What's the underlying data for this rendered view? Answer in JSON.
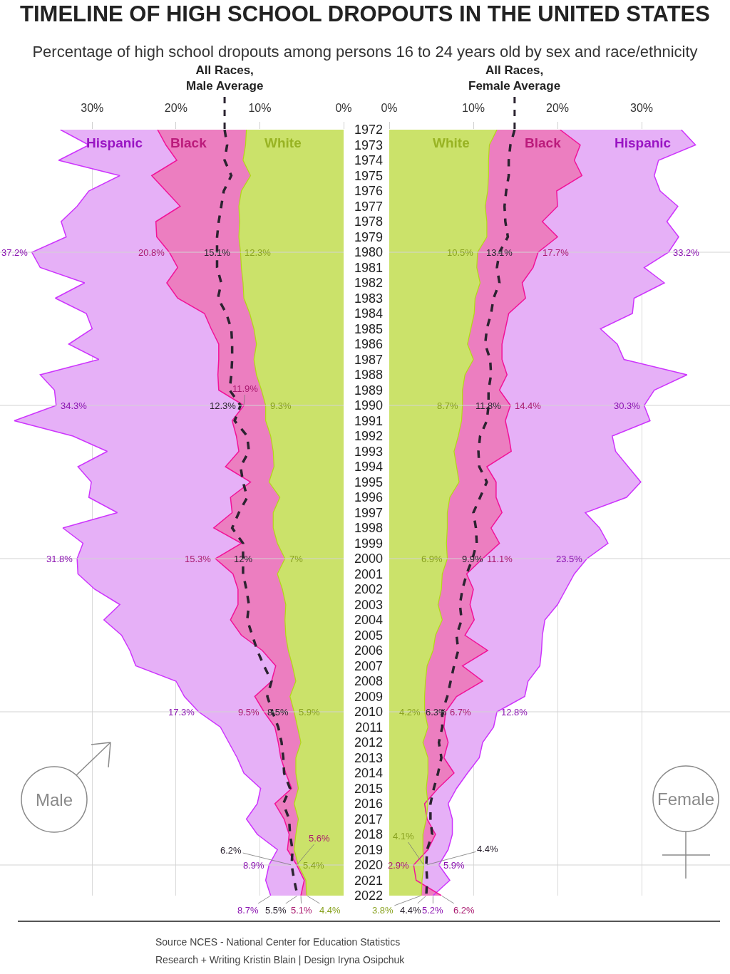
{
  "chart_data": [
    {
      "type": "area",
      "orientation": "horizontal",
      "title": "TIMELINE OF HIGH SCHOOL DROPOUTS IN THE UNITED STATES",
      "subtitle": "Percentage of high school dropouts among persons 16 to 24 years old by sex and race/ethnicity",
      "categories": [
        "1972",
        "1973",
        "1974",
        "1975",
        "1976",
        "1977",
        "1978",
        "1979",
        "1980",
        "1981",
        "1982",
        "1983",
        "1984",
        "1985",
        "1986",
        "1987",
        "1988",
        "1989",
        "1990",
        "1991",
        "1992",
        "1993",
        "1994",
        "1995",
        "1996",
        "1997",
        "1998",
        "1999",
        "2000",
        "2001",
        "2002",
        "2003",
        "2004",
        "2005",
        "2006",
        "2007",
        "2008",
        "2009",
        "2010",
        "2011",
        "2012",
        "2013",
        "2014",
        "2015",
        "2016",
        "2017",
        "2018",
        "2019",
        "2020",
        "2021",
        "2022"
      ],
      "xlim": [
        41,
        0
      ],
      "xticks": [
        {
          "value": 30,
          "label": "30%"
        },
        {
          "value": 20,
          "label": "20%"
        },
        {
          "value": 10,
          "label": "10%"
        },
        {
          "value": 0,
          "label": "0%"
        }
      ],
      "grid": "x",
      "tick_labels": "x",
      "ref_lines": [
        {
          "axis": "y",
          "value": "1980",
          "color": "#d3d3d3"
        },
        {
          "axis": "y",
          "value": "1990",
          "color": "#d3d3d3"
        },
        {
          "axis": "y",
          "value": "2000",
          "color": "#d3d3d3"
        },
        {
          "axis": "y",
          "value": "2010",
          "color": "#d3d3d3"
        },
        {
          "axis": "y",
          "value": "2020",
          "color": "#d3d3d3"
        }
      ],
      "annotations": [
        "Male",
        "Source NCES - National Center for Education Statistics",
        "Research + Writing Kristin Blain | Design Iryna Osipchuk"
      ],
      "series": [
        {
          "name": "White",
          "color": "#cbe26a",
          "values": [
            11.6,
            11.7,
            12.0,
            11.1,
            12.2,
            12.5,
            12.4,
            12.5,
            12.3,
            12.2,
            12.0,
            11.9,
            11.2,
            10.7,
            10.4,
            10.7,
            10.4,
            9.8,
            9.3,
            9.3,
            8.7,
            8.4,
            8.3,
            8.9,
            7.6,
            8.4,
            8.4,
            7.9,
            7.0,
            7.9,
            7.3,
            6.9,
            7.0,
            6.9,
            6.6,
            6.1,
            5.7,
            6.4,
            5.9,
            5.5,
            5.1,
            5.7,
            5.7,
            5.4,
            5.9,
            5.4,
            5.7,
            5.9,
            5.4,
            4.5,
            4.4
          ],
          "value_labels": [
            null,
            null,
            null,
            null,
            null,
            null,
            null,
            null,
            "12.3%",
            null,
            null,
            null,
            null,
            null,
            null,
            null,
            null,
            null,
            "9.3%",
            null,
            null,
            null,
            null,
            null,
            null,
            null,
            null,
            null,
            "7%",
            null,
            null,
            null,
            null,
            null,
            null,
            null,
            null,
            null,
            "5.9%",
            null,
            null,
            null,
            null,
            null,
            null,
            null,
            null,
            null,
            "5.4%",
            null,
            "4.4%"
          ]
        },
        {
          "name": "Black",
          "color": "#ec7ec0",
          "values": [
            22.2,
            21.2,
            19.9,
            22.9,
            21.2,
            19.5,
            22.4,
            22.3,
            20.8,
            19.8,
            21.1,
            19.8,
            16.6,
            15.8,
            14.9,
            14.9,
            15.0,
            14.9,
            11.9,
            13.3,
            12.8,
            12.5,
            14.1,
            11.1,
            13.5,
            13.3,
            15.5,
            12.2,
            15.3,
            13.2,
            12.6,
            12.6,
            13.5,
            12.2,
            9.7,
            8.1,
            8.6,
            10.6,
            9.5,
            8.2,
            7.8,
            7.5,
            6.9,
            6.2,
            8.2,
            7.1,
            6.5,
            6.7,
            5.6,
            4.7,
            5.1
          ],
          "value_labels": [
            null,
            null,
            null,
            null,
            null,
            null,
            null,
            null,
            "20.8%",
            null,
            null,
            null,
            null,
            null,
            null,
            null,
            null,
            null,
            "11.9%",
            null,
            null,
            null,
            null,
            null,
            null,
            null,
            null,
            null,
            "15.3%",
            null,
            null,
            null,
            null,
            null,
            null,
            null,
            null,
            null,
            "9.5%",
            null,
            null,
            null,
            null,
            null,
            null,
            null,
            null,
            null,
            "5.6%",
            null,
            "5.1%"
          ]
        },
        {
          "name": "Hispanic",
          "color": "#e6b0f7",
          "values": [
            33.8,
            30.4,
            34.0,
            26.7,
            30.4,
            31.8,
            33.7,
            33.1,
            37.2,
            36.2,
            30.9,
            34.4,
            30.7,
            30.0,
            32.8,
            29.2,
            36.2,
            34.5,
            34.3,
            39.3,
            32.3,
            28.2,
            31.7,
            30.1,
            30.4,
            27.0,
            33.5,
            31.1,
            31.8,
            31.7,
            29.7,
            26.7,
            28.6,
            26.5,
            25.5,
            24.8,
            20.0,
            19.0,
            17.3,
            14.7,
            13.7,
            12.7,
            11.9,
            9.9,
            10.3,
            11.6,
            10.3,
            7.9,
            8.9,
            9.3,
            8.7
          ],
          "value_labels": [
            null,
            null,
            null,
            null,
            null,
            null,
            null,
            null,
            "37.2%",
            null,
            null,
            null,
            null,
            null,
            null,
            null,
            null,
            null,
            "34.3%",
            null,
            null,
            null,
            null,
            null,
            null,
            null,
            null,
            null,
            "31.8%",
            null,
            null,
            null,
            null,
            null,
            null,
            null,
            null,
            null,
            "17.3%",
            null,
            null,
            null,
            null,
            null,
            null,
            null,
            null,
            null,
            "8.9%",
            null,
            "8.7%"
          ]
        },
        {
          "name": "All Races,\nMale Average",
          "type": "line",
          "line_style": "dashed",
          "color": "#2b2330",
          "values": [
            14.2,
            13.9,
            14.2,
            13.4,
            14.3,
            14.6,
            14.9,
            15.1,
            15.1,
            15.1,
            14.6,
            15.0,
            14.0,
            13.4,
            13.3,
            13.3,
            13.4,
            13.6,
            12.3,
            13.0,
            11.5,
            11.3,
            12.3,
            12.0,
            11.5,
            12.5,
            13.3,
            12.0,
            12.0,
            12.0,
            11.6,
            11.3,
            11.5,
            10.9,
            10.3,
            9.5,
            8.6,
            9.1,
            8.5,
            7.8,
            7.4,
            7.2,
            7.1,
            6.4,
            7.2,
            6.5,
            6.4,
            6.1,
            6.2,
            5.9,
            5.5
          ],
          "value_labels": [
            null,
            null,
            null,
            null,
            null,
            null,
            null,
            null,
            "15.1%",
            null,
            null,
            null,
            null,
            null,
            null,
            null,
            null,
            null,
            "12.3%",
            null,
            null,
            null,
            null,
            null,
            null,
            null,
            null,
            null,
            "12%",
            null,
            null,
            null,
            null,
            null,
            null,
            null,
            null,
            null,
            "8.5%",
            null,
            null,
            null,
            null,
            null,
            null,
            null,
            null,
            null,
            "6.2%",
            null,
            "5.5%"
          ]
        }
      ]
    },
    {
      "type": "area",
      "orientation": "horizontal",
      "categories": [
        "1972",
        "1973",
        "1974",
        "1975",
        "1976",
        "1977",
        "1978",
        "1979",
        "1980",
        "1981",
        "1982",
        "1983",
        "1984",
        "1985",
        "1986",
        "1987",
        "1988",
        "1989",
        "1990",
        "1991",
        "1992",
        "1993",
        "1994",
        "1995",
        "1996",
        "1997",
        "1998",
        "1999",
        "2000",
        "2001",
        "2002",
        "2003",
        "2004",
        "2005",
        "2006",
        "2007",
        "2008",
        "2009",
        "2010",
        "2011",
        "2012",
        "2013",
        "2014",
        "2015",
        "2016",
        "2017",
        "2018",
        "2019",
        "2020",
        "2021",
        "2022"
      ],
      "xlim": [
        0,
        40.5
      ],
      "xticks": [
        {
          "value": 0,
          "label": "0%"
        },
        {
          "value": 10,
          "label": "10%"
        },
        {
          "value": 20,
          "label": "20%"
        },
        {
          "value": 30,
          "label": "30%"
        }
      ],
      "grid": "x",
      "ref_lines": [
        {
          "axis": "y",
          "value": "1980",
          "color": "#d3d3d3"
        },
        {
          "axis": "y",
          "value": "1990",
          "color": "#d3d3d3"
        },
        {
          "axis": "y",
          "value": "2000",
          "color": "#d3d3d3"
        },
        {
          "axis": "y",
          "value": "2010",
          "color": "#d3d3d3"
        },
        {
          "axis": "y",
          "value": "2020",
          "color": "#d3d3d3"
        }
      ],
      "annotations": [
        "Female"
      ],
      "series": [
        {
          "name": "White",
          "color": "#cbe26a",
          "values": [
            12.8,
            11.9,
            11.8,
            11.8,
            11.7,
            11.4,
            11.6,
            11.6,
            10.5,
            10.4,
            10.8,
            10.2,
            10.1,
            9.7,
            9.3,
            10.0,
            9.0,
            8.7,
            8.7,
            8.6,
            8.2,
            7.7,
            8.0,
            8.3,
            7.2,
            6.9,
            6.9,
            6.8,
            6.9,
            6.3,
            6.2,
            5.8,
            6.3,
            5.5,
            5.2,
            4.5,
            4.3,
            4.2,
            4.2,
            4.6,
            4.0,
            4.6,
            4.6,
            4.4,
            4.6,
            4.4,
            4.0,
            4.0,
            4.1,
            3.9,
            3.8
          ],
          "value_labels": [
            null,
            null,
            null,
            null,
            null,
            null,
            null,
            null,
            "10.5%",
            null,
            null,
            null,
            null,
            null,
            null,
            null,
            null,
            null,
            "8.7%",
            null,
            null,
            null,
            null,
            null,
            null,
            null,
            null,
            null,
            "6.9%",
            null,
            null,
            null,
            null,
            null,
            null,
            null,
            null,
            null,
            "4.2%",
            null,
            null,
            null,
            null,
            null,
            null,
            null,
            null,
            null,
            "4.1%",
            null,
            "3.8%"
          ]
        },
        {
          "name": "Black",
          "color": "#ec7ec0",
          "values": [
            20.3,
            22.7,
            22.0,
            22.9,
            19.9,
            20.0,
            18.2,
            20.0,
            17.7,
            17.1,
            15.8,
            16.2,
            14.2,
            13.8,
            13.4,
            13.4,
            14.0,
            13.1,
            14.4,
            13.8,
            14.2,
            14.5,
            11.6,
            12.7,
            12.7,
            13.4,
            12.1,
            13.1,
            11.1,
            9.2,
            10.0,
            9.6,
            10.1,
            9.0,
            11.7,
            8.7,
            11.1,
            8.0,
            6.7,
            6.5,
            7.0,
            6.5,
            7.7,
            5.8,
            4.2,
            4.5,
            5.5,
            4.6,
            2.9,
            3.2,
            6.2
          ],
          "value_labels": [
            null,
            null,
            null,
            null,
            null,
            null,
            null,
            null,
            "17.7%",
            null,
            null,
            null,
            null,
            null,
            null,
            null,
            null,
            null,
            "14.4%",
            null,
            null,
            null,
            null,
            null,
            null,
            null,
            null,
            null,
            "11.1%",
            null,
            null,
            null,
            null,
            null,
            null,
            null,
            null,
            null,
            "6.7%",
            null,
            null,
            null,
            null,
            null,
            null,
            null,
            null,
            null,
            "2.9%",
            null,
            "6.2%"
          ]
        },
        {
          "name": "Hispanic",
          "color": "#e6b0f7",
          "values": [
            34.7,
            36.4,
            32.0,
            31.5,
            32.2,
            34.3,
            33.0,
            34.4,
            33.2,
            30.3,
            32.7,
            29.1,
            28.9,
            25.1,
            27.1,
            27.9,
            35.4,
            31.5,
            30.3,
            31.0,
            26.5,
            26.9,
            28.4,
            29.9,
            28.2,
            23.3,
            25.0,
            26.0,
            23.5,
            22.0,
            21.0,
            20.0,
            18.5,
            18.2,
            18.1,
            17.9,
            16.5,
            16.1,
            12.8,
            12.4,
            11.1,
            10.7,
            9.3,
            8.0,
            7.0,
            7.5,
            7.5,
            7.0,
            5.9,
            7.2,
            5.2
          ],
          "value_labels": [
            null,
            null,
            null,
            null,
            null,
            null,
            null,
            null,
            "33.2%",
            null,
            null,
            null,
            null,
            null,
            null,
            null,
            null,
            null,
            "30.3%",
            null,
            null,
            null,
            null,
            null,
            null,
            null,
            null,
            null,
            "23.5%",
            null,
            null,
            null,
            null,
            null,
            null,
            null,
            null,
            null,
            "12.8%",
            null,
            null,
            null,
            null,
            null,
            null,
            null,
            null,
            null,
            "5.9%",
            null,
            "5.2%"
          ]
        },
        {
          "name": "All Races,\nFemale Average",
          "type": "line",
          "line_style": "dashed",
          "color": "#2b2330",
          "values": [
            14.9,
            14.4,
            14.2,
            14.2,
            13.9,
            13.7,
            13.8,
            14.1,
            13.1,
            12.8,
            13.1,
            12.4,
            12.1,
            11.6,
            11.4,
            12.0,
            12.1,
            11.8,
            11.8,
            11.6,
            10.8,
            10.6,
            10.7,
            11.6,
            10.8,
            10.0,
            10.3,
            10.4,
            9.9,
            9.2,
            8.7,
            8.4,
            8.6,
            8.0,
            8.2,
            7.7,
            7.3,
            6.9,
            6.3,
            6.3,
            5.9,
            6.2,
            5.8,
            5.3,
            4.9,
            4.9,
            5.1,
            4.5,
            4.4,
            4.5,
            4.4
          ],
          "value_labels": [
            null,
            null,
            null,
            null,
            null,
            null,
            null,
            null,
            "13.1%",
            null,
            null,
            null,
            null,
            null,
            null,
            null,
            null,
            null,
            "11.8%",
            null,
            null,
            null,
            null,
            null,
            null,
            null,
            null,
            null,
            "9.9%",
            null,
            null,
            null,
            null,
            null,
            null,
            null,
            null,
            null,
            "6.3%",
            null,
            null,
            null,
            null,
            null,
            null,
            null,
            null,
            null,
            "4.4%",
            null,
            "4.4%"
          ]
        }
      ]
    }
  ]
}
